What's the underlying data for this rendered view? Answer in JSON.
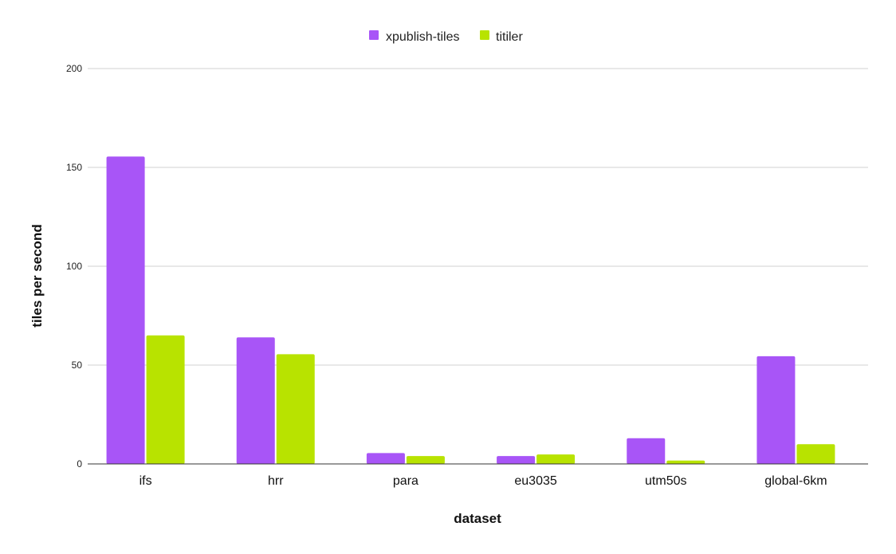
{
  "chart_data": {
    "type": "bar",
    "title": "",
    "xlabel": "dataset",
    "ylabel": "tiles per second",
    "categories": [
      "ifs",
      "hrr",
      "para",
      "eu3035",
      "utm50s",
      "global-6km"
    ],
    "series": [
      {
        "name": "xpublish-tiles",
        "color": "#a855f7",
        "values": [
          155.5,
          64,
          5.5,
          4,
          13,
          54.5
        ]
      },
      {
        "name": "titiler",
        "color": "#b8e300",
        "values": [
          65,
          55.5,
          4,
          4.8,
          1.7,
          10
        ]
      }
    ],
    "ylim": [
      0,
      200
    ],
    "yticks": [
      0,
      50,
      100,
      150,
      200
    ],
    "grid": true,
    "legend_position": "top-center"
  }
}
